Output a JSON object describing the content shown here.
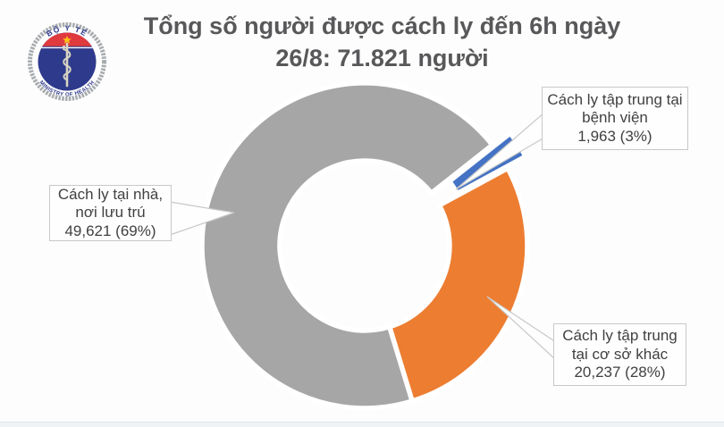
{
  "header": {
    "title_line1": "Tổng số người được cách ly đến 6h ngày",
    "title_line2": "26/8: 71.821 người",
    "title_color": "#58585A"
  },
  "logo": {
    "top_text": "BỘ Y TẾ",
    "bottom_text": "MINISTRY OF HEALTH",
    "ring_color": "#A8ABAE",
    "disc_color": "#2E3A8C",
    "band_color": "#DF3A3D",
    "star_color": "#FDC116"
  },
  "chart_data": {
    "type": "pie",
    "subtype": "donut",
    "title": "Tổng số người được cách ly đến 6h ngày 26/8: 71.821 người",
    "total": 71821,
    "total_display": "71.821 người",
    "start_angle_deg": 163,
    "legend": "none",
    "slices": [
      {
        "label": "Cách ly tại nhà, nơi lưu trú",
        "value": 49621,
        "percent": 69,
        "display": "49,621 (69%)",
        "color": "#A6A6A6",
        "exploded": false
      },
      {
        "label": "Cách ly tập trung tại bệnh viện",
        "value": 1963,
        "percent": 3,
        "display": "1,963 (3%)",
        "color": "#4472C4",
        "exploded": true
      },
      {
        "label": "Cách ly tập trung tại cơ sở khác",
        "value": 20237,
        "percent": 28,
        "display": "20,237 (28%)",
        "color": "#ED7D31",
        "exploded": false
      }
    ]
  },
  "callouts": [
    {
      "lines": [
        "Cách ly tại nhà,",
        "nơi lưu trú",
        "49,621 (69%)"
      ]
    },
    {
      "lines": [
        "Cách ly tập trung tại",
        "bệnh viện",
        "1,963 (3%)"
      ]
    },
    {
      "lines": [
        "Cách ly tập trung",
        "tại cơ sở khác",
        "20,237 (28%)"
      ]
    }
  ]
}
